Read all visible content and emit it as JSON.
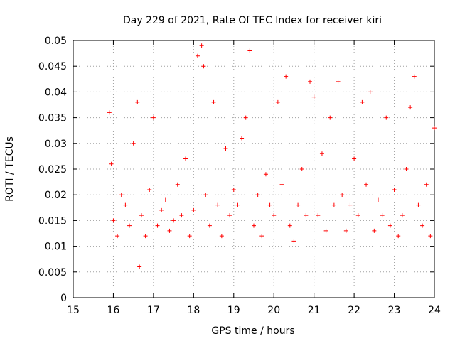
{
  "chart_data": {
    "type": "scatter",
    "title": "Day 229 of 2021, Rate Of TEC Index for receiver kiri",
    "xlabel": "GPS time / hours",
    "ylabel": "ROTI / TECUs",
    "xlim": [
      15,
      24
    ],
    "ylim": [
      0,
      0.05
    ],
    "x_ticks": [
      "15",
      "16",
      "17",
      "18",
      "19",
      "20",
      "21",
      "22",
      "23",
      "24"
    ],
    "y_ticks": [
      "0",
      "0.005",
      "0.01",
      "0.015",
      "0.02",
      "0.025",
      "0.03",
      "0.035",
      "0.04",
      "0.045",
      "0.05"
    ],
    "grid": true,
    "marker": "+",
    "color": "#ff0000",
    "series": [
      {
        "name": "ROTI",
        "x": [
          15.9,
          15.95,
          16.0,
          16.1,
          16.2,
          16.3,
          16.4,
          16.5,
          16.6,
          16.65,
          16.7,
          16.8,
          16.9,
          17.0,
          17.1,
          17.2,
          17.3,
          17.4,
          17.5,
          17.6,
          17.7,
          17.8,
          17.9,
          18.0,
          18.1,
          18.2,
          18.25,
          18.3,
          18.4,
          18.5,
          18.6,
          18.7,
          18.8,
          18.9,
          19.0,
          19.1,
          19.2,
          19.3,
          19.4,
          19.5,
          19.6,
          19.7,
          19.8,
          19.9,
          20.0,
          20.1,
          20.2,
          20.3,
          20.4,
          20.5,
          20.6,
          20.7,
          20.8,
          20.9,
          21.0,
          21.1,
          21.2,
          21.3,
          21.4,
          21.5,
          21.6,
          21.7,
          21.8,
          21.9,
          22.0,
          22.1,
          22.2,
          22.3,
          22.4,
          22.5,
          22.6,
          22.7,
          22.8,
          22.9,
          23.0,
          23.1,
          23.2,
          23.3,
          23.4,
          23.5,
          23.6,
          23.7,
          23.8,
          23.9,
          24.0
        ],
        "y": [
          0.036,
          0.026,
          0.015,
          0.012,
          0.02,
          0.018,
          0.014,
          0.03,
          0.038,
          0.006,
          0.016,
          0.012,
          0.021,
          0.035,
          0.014,
          0.017,
          0.019,
          0.013,
          0.015,
          0.022,
          0.016,
          0.027,
          0.012,
          0.017,
          0.047,
          0.049,
          0.045,
          0.02,
          0.014,
          0.038,
          0.018,
          0.012,
          0.029,
          0.016,
          0.021,
          0.018,
          0.031,
          0.035,
          0.048,
          0.014,
          0.02,
          0.012,
          0.024,
          0.018,
          0.016,
          0.038,
          0.022,
          0.043,
          0.014,
          0.011,
          0.018,
          0.025,
          0.016,
          0.042,
          0.039,
          0.016,
          0.028,
          0.013,
          0.035,
          0.018,
          0.042,
          0.02,
          0.013,
          0.018,
          0.027,
          0.016,
          0.038,
          0.022,
          0.04,
          0.013,
          0.019,
          0.016,
          0.035,
          0.014,
          0.021,
          0.012,
          0.016,
          0.025,
          0.037,
          0.043,
          0.018,
          0.014,
          0.022,
          0.012,
          0.033
        ]
      }
    ]
  }
}
